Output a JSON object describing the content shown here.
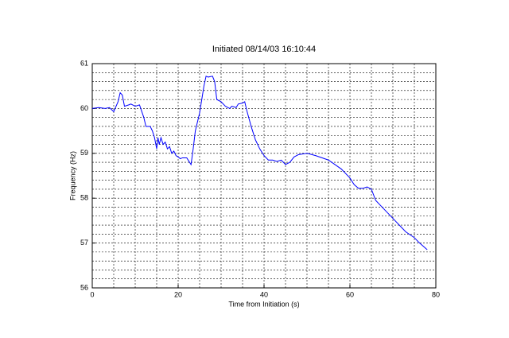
{
  "chart_data": {
    "type": "line",
    "title": "Initiated 08/14/03 16:10:44",
    "x_label": "Time from Initiation (s)",
    "y_label": "Frequency (Hz)",
    "xlim": [
      0,
      80
    ],
    "ylim": [
      56,
      61
    ],
    "xticks": [
      0,
      20,
      40,
      60,
      80
    ],
    "yticks": [
      56,
      57,
      58,
      59,
      60,
      61
    ],
    "xminorticks": [
      5,
      10,
      15,
      25,
      30,
      35,
      45,
      50,
      55,
      65,
      70,
      75
    ],
    "yminorticks": [
      56.2,
      56.4,
      56.6,
      56.8,
      57.2,
      57.4,
      57.6,
      57.8,
      58.2,
      58.4,
      58.6,
      58.8,
      59.2,
      59.4,
      59.6,
      59.8,
      60.2,
      60.4,
      60.6,
      60.8
    ],
    "grid": true,
    "series": [
      {
        "color": "#0000ff",
        "x": [
          0,
          1.5,
          3,
          4,
          5,
          6,
          6.5,
          7,
          7.5,
          8.5,
          9,
          10,
          11,
          12,
          12.5,
          13.5,
          14,
          14.5,
          15,
          15.3,
          15.6,
          16,
          16.5,
          17,
          17.5,
          18,
          18.5,
          19,
          19.5,
          20,
          20.5,
          21,
          22,
          23,
          23.5,
          24,
          25,
          25.5,
          26,
          26.5,
          27,
          28,
          28.5,
          29,
          30,
          31,
          32,
          32.5,
          33.5,
          34,
          35,
          35.5,
          36,
          37,
          38,
          39,
          40,
          41,
          42,
          43,
          44,
          45,
          46,
          47,
          48,
          50,
          52,
          55,
          58,
          60,
          61,
          62,
          63,
          64,
          65,
          66,
          68,
          70,
          72,
          73,
          75,
          76,
          78
        ],
        "values": [
          60.0,
          60.02,
          60.0,
          60.02,
          59.93,
          60.15,
          60.35,
          60.3,
          60.05,
          60.08,
          60.1,
          60.05,
          60.08,
          59.8,
          59.6,
          59.6,
          59.5,
          59.35,
          59.1,
          59.35,
          59.2,
          59.35,
          59.2,
          59.25,
          59.1,
          59.15,
          59.0,
          59.05,
          58.95,
          58.92,
          58.88,
          58.9,
          58.9,
          58.75,
          59.1,
          59.5,
          59.9,
          60.2,
          60.5,
          60.72,
          60.7,
          60.72,
          60.6,
          60.2,
          60.15,
          60.05,
          60.0,
          60.05,
          60.02,
          60.1,
          60.12,
          60.15,
          59.95,
          59.6,
          59.3,
          59.1,
          58.95,
          58.85,
          58.85,
          58.82,
          58.85,
          58.75,
          58.8,
          58.92,
          58.97,
          59.0,
          58.95,
          58.85,
          58.65,
          58.45,
          58.3,
          58.22,
          58.22,
          58.25,
          58.2,
          57.95,
          57.75,
          57.55,
          57.35,
          57.25,
          57.12,
          57.02,
          56.85
        ]
      }
    ]
  }
}
